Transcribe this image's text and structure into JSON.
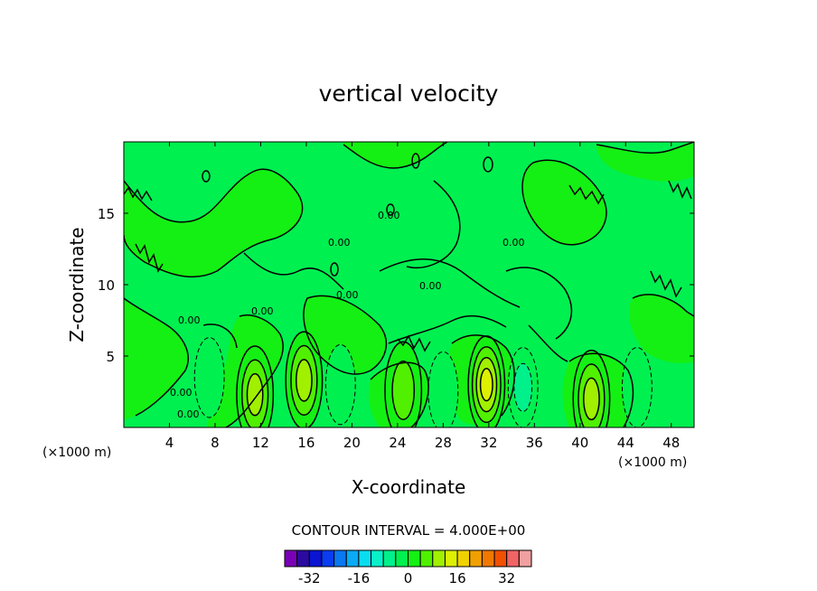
{
  "chart_data": {
    "type": "heatmap",
    "title": "vertical velocity",
    "xlabel": "X-coordinate",
    "ylabel": "Z-coordinate",
    "x_unit": "(×1000 m)",
    "y_unit": "(×1000 m)",
    "xlim": [
      0,
      50
    ],
    "ylim": [
      0,
      20
    ],
    "xticks": [
      4,
      8,
      12,
      16,
      20,
      24,
      28,
      32,
      36,
      40,
      44,
      48
    ],
    "yticks": [
      5,
      10,
      15
    ],
    "contour_interval_text": "CONTOUR INTERVAL = 4.000E+00",
    "contour_label": "0.00",
    "colorbar": {
      "colors": [
        "#7a00b8",
        "#2a0aa0",
        "#0a14d2",
        "#0a3cf0",
        "#0a78f0",
        "#0aaaf5",
        "#0adcf0",
        "#0af0c8",
        "#00f08c",
        "#00f050",
        "#14f014",
        "#50f000",
        "#a0f000",
        "#dcf000",
        "#f0d200",
        "#f0a000",
        "#f07800",
        "#f05000",
        "#f06464",
        "#f0a0a0"
      ],
      "tick_labels": [
        "-32",
        "-16",
        "0",
        "16",
        "32"
      ],
      "tick_values": [
        -32,
        -16,
        0,
        16,
        32
      ],
      "range": [
        -40,
        40
      ]
    },
    "field": {
      "background_value": 0,
      "upward_cells": [
        {
          "x": 11.5,
          "z": 2.3,
          "peak": 14
        },
        {
          "x": 15.8,
          "z": 3.3,
          "peak": 14
        },
        {
          "x": 24.5,
          "z": 2.6,
          "peak": 8
        },
        {
          "x": 31.8,
          "z": 3.0,
          "peak": 16
        },
        {
          "x": 41.0,
          "z": 2.0,
          "peak": 12
        }
      ],
      "downward_cells": [
        {
          "x": 7.5,
          "z": 3.5,
          "peak": -6
        },
        {
          "x": 19.0,
          "z": 3.0,
          "peak": -6
        },
        {
          "x": 28.0,
          "z": 2.5,
          "peak": -6
        },
        {
          "x": 35.0,
          "z": 2.8,
          "peak": -10
        },
        {
          "x": 45.0,
          "z": 2.8,
          "peak": -6
        }
      ]
    }
  }
}
